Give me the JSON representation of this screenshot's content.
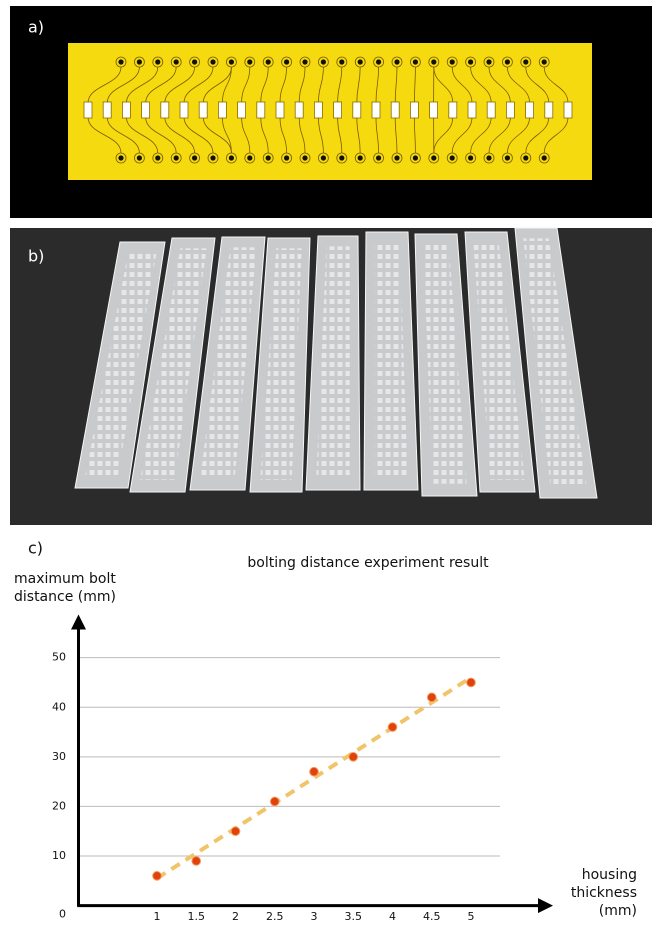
{
  "panel_labels": [
    "a)",
    "b)",
    "c)"
  ],
  "chart_data": {
    "type": "scatter",
    "title": "bolting distance experiment result",
    "y_label": "maximum bolt distance (mm)",
    "x_label": "housing thickness (mm)",
    "x": [
      1,
      1.5,
      2,
      2.5,
      3,
      3.5,
      4,
      4.5,
      5
    ],
    "values": [
      6,
      9,
      15,
      21,
      27,
      30,
      36,
      42,
      45
    ],
    "color": "#e0410f",
    "trendline": {
      "x": [
        1,
        5
      ],
      "values": [
        5.5,
        46
      ],
      "color": "#f2c46a"
    },
    "xlim": [
      0,
      6
    ],
    "ylim": [
      0,
      58
    ],
    "xticks": [
      1,
      1.5,
      2,
      2.5,
      3,
      3.5,
      4,
      4.5,
      5
    ],
    "yticks": [
      0,
      10,
      20,
      30,
      40,
      50
    ],
    "grid": true
  }
}
